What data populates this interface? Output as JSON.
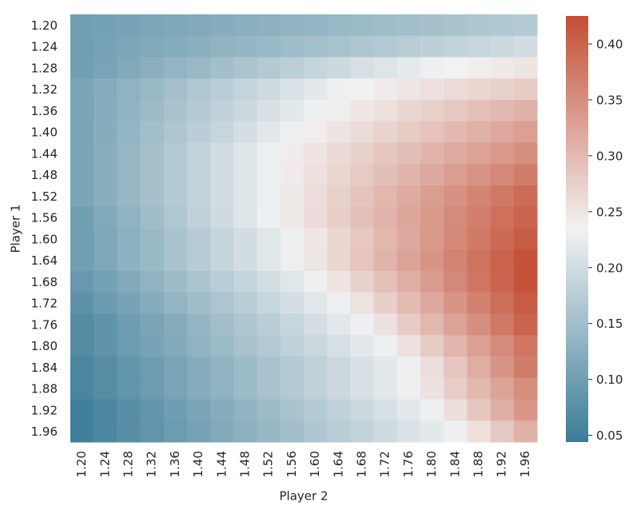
{
  "chart_data": {
    "type": "heatmap",
    "x_label": "Player 2",
    "y_label": "Player 1",
    "x_categories": [
      "1.20",
      "1.24",
      "1.28",
      "1.32",
      "1.36",
      "1.40",
      "1.44",
      "1.48",
      "1.52",
      "1.56",
      "1.60",
      "1.64",
      "1.68",
      "1.72",
      "1.76",
      "1.80",
      "1.84",
      "1.88",
      "1.92",
      "1.96"
    ],
    "y_categories": [
      "1.20",
      "1.24",
      "1.28",
      "1.32",
      "1.36",
      "1.40",
      "1.44",
      "1.48",
      "1.52",
      "1.56",
      "1.60",
      "1.64",
      "1.68",
      "1.72",
      "1.76",
      "1.80",
      "1.84",
      "1.88",
      "1.92",
      "1.96"
    ],
    "z": [
      [
        0.1,
        0.104,
        0.107,
        0.111,
        0.115,
        0.118,
        0.122,
        0.126,
        0.129,
        0.133,
        0.137,
        0.141,
        0.144,
        0.148,
        0.152,
        0.155,
        0.159,
        0.163,
        0.166,
        0.17
      ],
      [
        0.1,
        0.105,
        0.111,
        0.116,
        0.121,
        0.126,
        0.132,
        0.137,
        0.142,
        0.147,
        0.153,
        0.158,
        0.163,
        0.168,
        0.174,
        0.179,
        0.184,
        0.189,
        0.195,
        0.2
      ],
      [
        0.1,
        0.109,
        0.117,
        0.126,
        0.135,
        0.143,
        0.152,
        0.161,
        0.169,
        0.178,
        0.187,
        0.195,
        0.204,
        0.213,
        0.221,
        0.23,
        0.235,
        0.24,
        0.245,
        0.25
      ],
      [
        0.11,
        0.121,
        0.132,
        0.143,
        0.154,
        0.165,
        0.175,
        0.186,
        0.197,
        0.208,
        0.219,
        0.23,
        0.236,
        0.243,
        0.249,
        0.255,
        0.261,
        0.268,
        0.274,
        0.28
      ],
      [
        0.11,
        0.122,
        0.134,
        0.146,
        0.158,
        0.17,
        0.182,
        0.194,
        0.206,
        0.218,
        0.23,
        0.239,
        0.248,
        0.257,
        0.266,
        0.274,
        0.283,
        0.292,
        0.301,
        0.31
      ],
      [
        0.11,
        0.123,
        0.137,
        0.15,
        0.163,
        0.177,
        0.19,
        0.203,
        0.217,
        0.23,
        0.24,
        0.25,
        0.26,
        0.27,
        0.28,
        0.29,
        0.3,
        0.31,
        0.32,
        0.33
      ],
      [
        0.11,
        0.125,
        0.14,
        0.155,
        0.17,
        0.185,
        0.2,
        0.215,
        0.23,
        0.241,
        0.252,
        0.263,
        0.274,
        0.285,
        0.295,
        0.306,
        0.317,
        0.328,
        0.339,
        0.35
      ],
      [
        0.11,
        0.125,
        0.14,
        0.155,
        0.17,
        0.185,
        0.2,
        0.215,
        0.23,
        0.243,
        0.255,
        0.268,
        0.281,
        0.294,
        0.306,
        0.319,
        0.332,
        0.345,
        0.357,
        0.37
      ],
      [
        0.11,
        0.125,
        0.14,
        0.155,
        0.17,
        0.185,
        0.2,
        0.215,
        0.23,
        0.245,
        0.259,
        0.274,
        0.288,
        0.303,
        0.317,
        0.332,
        0.346,
        0.361,
        0.375,
        0.39
      ],
      [
        0.1,
        0.116,
        0.133,
        0.149,
        0.165,
        0.181,
        0.198,
        0.214,
        0.23,
        0.245,
        0.261,
        0.276,
        0.292,
        0.307,
        0.323,
        0.338,
        0.354,
        0.369,
        0.385,
        0.4
      ],
      [
        0.1,
        0.114,
        0.129,
        0.143,
        0.158,
        0.172,
        0.187,
        0.201,
        0.216,
        0.23,
        0.248,
        0.266,
        0.284,
        0.302,
        0.32,
        0.338,
        0.356,
        0.374,
        0.392,
        0.41
      ],
      [
        0.1,
        0.114,
        0.129,
        0.143,
        0.158,
        0.172,
        0.187,
        0.201,
        0.216,
        0.23,
        0.249,
        0.268,
        0.287,
        0.306,
        0.325,
        0.344,
        0.363,
        0.382,
        0.401,
        0.42
      ],
      [
        0.09,
        0.104,
        0.118,
        0.132,
        0.146,
        0.16,
        0.174,
        0.188,
        0.202,
        0.216,
        0.23,
        0.251,
        0.272,
        0.293,
        0.314,
        0.336,
        0.357,
        0.378,
        0.399,
        0.42
      ],
      [
        0.08,
        0.094,
        0.107,
        0.121,
        0.135,
        0.148,
        0.162,
        0.175,
        0.189,
        0.203,
        0.216,
        0.23,
        0.253,
        0.275,
        0.298,
        0.32,
        0.343,
        0.365,
        0.388,
        0.41
      ],
      [
        0.07,
        0.083,
        0.097,
        0.11,
        0.123,
        0.137,
        0.15,
        0.163,
        0.177,
        0.19,
        0.203,
        0.217,
        0.23,
        0.254,
        0.279,
        0.303,
        0.327,
        0.351,
        0.376,
        0.4
      ],
      [
        0.07,
        0.082,
        0.095,
        0.107,
        0.119,
        0.132,
        0.144,
        0.156,
        0.168,
        0.181,
        0.193,
        0.205,
        0.218,
        0.23,
        0.255,
        0.28,
        0.305,
        0.33,
        0.355,
        0.38
      ],
      [
        0.06,
        0.072,
        0.084,
        0.096,
        0.109,
        0.121,
        0.133,
        0.145,
        0.157,
        0.169,
        0.181,
        0.194,
        0.206,
        0.218,
        0.23,
        0.258,
        0.286,
        0.314,
        0.342,
        0.37
      ],
      [
        0.06,
        0.072,
        0.084,
        0.096,
        0.109,
        0.121,
        0.133,
        0.145,
        0.157,
        0.169,
        0.181,
        0.194,
        0.206,
        0.218,
        0.23,
        0.254,
        0.278,
        0.302,
        0.326,
        0.35
      ],
      [
        0.05,
        0.062,
        0.074,
        0.086,
        0.098,
        0.11,
        0.122,
        0.134,
        0.146,
        0.158,
        0.17,
        0.182,
        0.194,
        0.206,
        0.218,
        0.23,
        0.258,
        0.285,
        0.313,
        0.34
      ],
      [
        0.05,
        0.061,
        0.073,
        0.084,
        0.095,
        0.106,
        0.118,
        0.129,
        0.14,
        0.151,
        0.163,
        0.174,
        0.185,
        0.196,
        0.208,
        0.219,
        0.23,
        0.257,
        0.283,
        0.31
      ]
    ],
    "zlim": [
      0.044,
      0.425
    ],
    "zticks": [
      0.05,
      {
        "value": 0.1,
        "label": "0.10"
      },
      0.15,
      {
        "value": 0.2,
        "label": "0.20"
      },
      0.25,
      {
        "value": 0.3,
        "label": "0.30"
      },
      0.35,
      {
        "value": 0.4,
        "label": "0.40"
      }
    ],
    "colormap": [
      "#3b7c98",
      "#f2f2f2",
      "#c44e34"
    ]
  }
}
